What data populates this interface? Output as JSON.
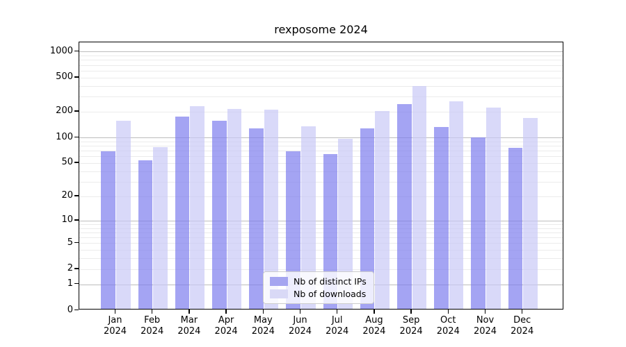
{
  "chart_data": {
    "type": "bar",
    "title": "rexposome 2024",
    "xlabel": "",
    "ylabel": "",
    "year_label": "2024",
    "categories": [
      "Jan",
      "Feb",
      "Mar",
      "Apr",
      "May",
      "Jun",
      "Jul",
      "Aug",
      "Sep",
      "Oct",
      "Nov",
      "Dec"
    ],
    "series": [
      {
        "name": "Nb of distinct IPs",
        "color": "#a5a5f0",
        "fill_rgba": "rgba(126,126,238,0.7)",
        "values": [
          66,
          52,
          168,
          151,
          123,
          66,
          61,
          123,
          235,
          127,
          97,
          73
        ]
      },
      {
        "name": "Nb of downloads",
        "color": "#d9d9f6",
        "fill_rgba": "rgba(201,201,247,0.7)",
        "values": [
          152,
          74,
          222,
          206,
          202,
          130,
          93,
          196,
          385,
          255,
          215,
          163
        ]
      }
    ],
    "y_ticks": [
      0,
      1,
      2,
      5,
      10,
      20,
      50,
      100,
      200,
      500,
      1000
    ],
    "y_major_gridlines": [
      1,
      10,
      100,
      1000
    ],
    "y_minor_gridline_decades": [
      1,
      10,
      100
    ],
    "scale": "log10(value+1)",
    "ylim_top_value": 1280,
    "grid": true,
    "legend_position": "lower center"
  }
}
